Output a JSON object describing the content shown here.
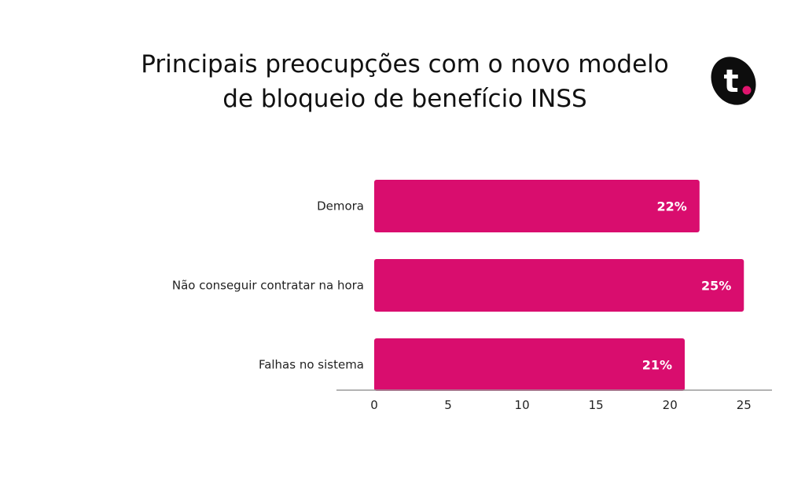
{
  "title_lines": [
    "Principais preocupções com o novo modelo",
    "de bloqueio de benefício INSS"
  ],
  "logo": {
    "text": "t",
    "icon": "brand-logo-t",
    "colors": {
      "body": "#0d0d0d",
      "dot": "#e0156e",
      "text": "#ffffff"
    }
  },
  "colors": {
    "bar": "#d90d6e",
    "axis": "#9a9a9a",
    "text": "#222222"
  },
  "chart_data": {
    "type": "bar",
    "orientation": "horizontal",
    "categories": [
      "Demora",
      "Não conseguir contratar na hora",
      "Falhas no sistema"
    ],
    "values": [
      22,
      25,
      21
    ],
    "data_labels": [
      "22%",
      "25%",
      "21%"
    ],
    "xticks": [
      0,
      5,
      10,
      15,
      20,
      25
    ],
    "xlim": [
      0,
      26.9
    ],
    "grid": false,
    "legend": "none"
  }
}
